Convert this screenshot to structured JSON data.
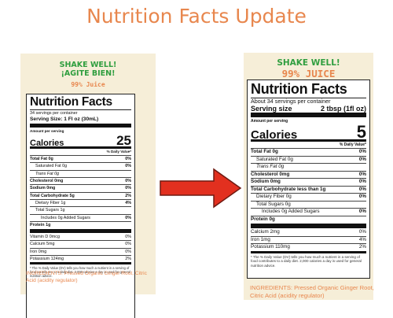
{
  "page_title": "Nutrition Facts Update",
  "colors": {
    "accent_orange": "#e8874e",
    "shake_green": "#2f9e3f",
    "label_background": "#f6eed8",
    "arrow_red": "#e2301f"
  },
  "arrow_icon": "right-arrow-icon",
  "old_label": {
    "shake_line1": "SHAKE WELL!",
    "shake_line2": "¡AGITE BIEN!",
    "juice": "99% Juice",
    "facts": {
      "title": "Nutrition Facts",
      "servings_per_container": "34 servings per container",
      "serving_size": "Serving Size: 1 Fl oz (30mL)",
      "amount_per_serving": "Amount per serving",
      "calories_label": "Calories",
      "calories_value": "25",
      "dv_header": "% Daily Value*",
      "rows": [
        {
          "label": "Total Fat 0g",
          "dv": "0%"
        },
        {
          "label": "Saturated Fat 0g",
          "dv": "0%"
        },
        {
          "label": "Trans Fat 0g",
          "dv": ""
        },
        {
          "label": "Cholesterol 0mg",
          "dv": "0%"
        },
        {
          "label": "Sodium 0mg",
          "dv": "0%"
        },
        {
          "label": "Total Carbohydrate 5g",
          "dv": "2%"
        },
        {
          "label": "Dietary Fiber 1g",
          "dv": "4%"
        },
        {
          "label": "Total Sugars 1g",
          "dv": ""
        },
        {
          "label": "Includes 0g Added Sugars",
          "dv": "0%"
        },
        {
          "label": "Protein 1g",
          "dv": ""
        }
      ],
      "vitamins": [
        {
          "label": "Vitamin D 0mcg",
          "dv": "0%"
        },
        {
          "label": "Calcium 5mg",
          "dv": "0%"
        },
        {
          "label": "Iron 0mg",
          "dv": "0%"
        },
        {
          "label": "Potassium 124mg",
          "dv": "2%"
        }
      ],
      "footnote": "* The % Daily Value (DV) tells you how much a nutrient in a serving of food contributes to a daily diet. 2,000 calories a day is used for general nutrition advice."
    },
    "ingredients": "INGREDIENTS: Pressed Organic Ginger Root, Citric Acid (acidity regulator)"
  },
  "new_label": {
    "shake_line1": "SHAKE WELL!",
    "juice": "99% JUICE",
    "facts": {
      "title": "Nutrition Facts",
      "servings_per_container": "About 34 servings per container",
      "serving_size_label": "Serving size",
      "serving_size_value": "2 tbsp (1fl oz)",
      "amount_per_serving": "Amount per serving",
      "calories_label": "Calories",
      "calories_value": "5",
      "dv_header": "% Daily Value*",
      "rows": [
        {
          "label": "Total Fat 0g",
          "dv": "0%"
        },
        {
          "label": "Saturated Fat 0g",
          "dv": "0%"
        },
        {
          "label": "Trans Fat 0g",
          "dv": ""
        },
        {
          "label": "Cholesterol 0mg",
          "dv": "0%"
        },
        {
          "label": "Sodium 0mg",
          "dv": "0%"
        },
        {
          "label": "Total Carbohydrate less than 1g",
          "dv": "0%"
        },
        {
          "label": "Dietary Fiber 0g",
          "dv": "0%"
        },
        {
          "label": "Total Sugars 0g",
          "dv": ""
        },
        {
          "label": "Includes 0g Added Sugars",
          "dv": "0%"
        },
        {
          "label": "Protein 0g",
          "dv": ""
        }
      ],
      "vitamins": [
        {
          "label": "Calcium 2mg",
          "dv": "0%"
        },
        {
          "label": "Iron 1mg",
          "dv": "4%"
        },
        {
          "label": "Potassium 110mg",
          "dv": "2%"
        }
      ],
      "footnote": "* The % Daily Value (DV) tells you how much a nutrient in a serving of food contributes to a daily diet. 2,000 calories a day is used for general nutrition advice."
    },
    "ingredients": "INGREDIENTS: Pressed Organic Ginger Root, Citric Acid (acidity regulator)"
  }
}
